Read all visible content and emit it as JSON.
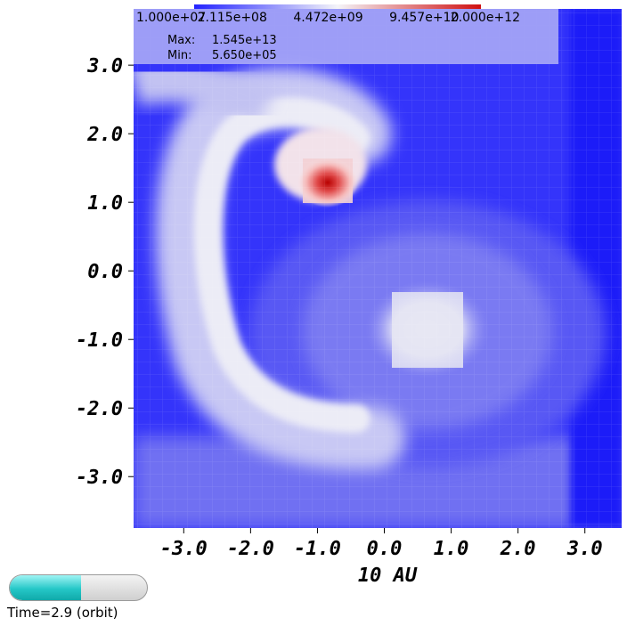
{
  "chart_data": {
    "type": "heatmap",
    "title": "",
    "xlabel": "10 AU",
    "ylabel": "",
    "xlim": [
      -3.75,
      3.55
    ],
    "ylim": [
      -3.75,
      3.82
    ],
    "xticks": [
      -3.0,
      -2.0,
      -1.0,
      0.0,
      1.0,
      2.0,
      3.0
    ],
    "xtick_labels": [
      "-3.0",
      "-2.0",
      "-1.0",
      "0.0",
      "1.0",
      "2.0",
      "3.0"
    ],
    "yticks": [
      3.0,
      2.0,
      1.0,
      0.0,
      -1.0,
      -2.0,
      -3.0
    ],
    "ytick_labels": [
      "3.0",
      "2.0",
      "1.0",
      "0.0",
      "-1.0",
      "-2.0",
      "-3.0"
    ],
    "colormap": "blue-white-red (log scale)",
    "scale": "log",
    "colorbar_ticks": [
      "1.000e+07",
      "2.115e+08",
      "4.472e+09",
      "9.457e+10",
      "2.000e+12"
    ],
    "color_low": "#2323ff",
    "color_mid": "#f2f2f8",
    "color_high": "#d01010",
    "max_label": "Max:",
    "max_value": "1.545e+13",
    "min_label": "Min:",
    "min_value": "5.650e+05",
    "features": [
      {
        "name": "dense clump (peak)",
        "x": -0.85,
        "y": 1.28,
        "level": "max"
      },
      {
        "name": "central star region",
        "x": 0.6,
        "y": -0.7,
        "level": "mid"
      },
      {
        "name": "spiral arm",
        "x": -2.3,
        "y": -0.5,
        "level": "mid"
      }
    ]
  },
  "time_widget": {
    "label": "Time=2.9 (orbit)",
    "progress": 0.52,
    "fill_color": "#25c7c7"
  }
}
